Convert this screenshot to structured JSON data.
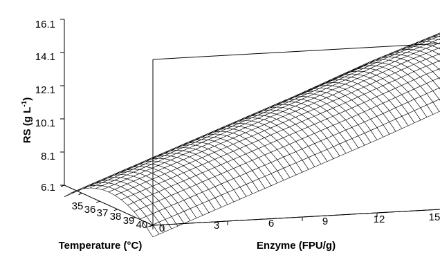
{
  "chart_data": {
    "type": "surface",
    "zlabel": "RS (g L",
    "zlabel_sup": "-1",
    "zlabel_close": ")",
    "xlabel": "Enzyme (FPU/g)",
    "ylabel": "Temperature (°C)",
    "x_ticks": [
      "0",
      "3",
      "6",
      "9",
      "12",
      "15"
    ],
    "y_ticks": [
      "35",
      "36",
      "37",
      "38",
      "39",
      "40"
    ],
    "z_ticks": [
      "6.1",
      "8.1",
      "10.1",
      "12.1",
      "14.1",
      "16.1"
    ],
    "xlim": [
      0,
      15
    ],
    "ylim": [
      35,
      40
    ],
    "zlim": [
      6.1,
      16.1
    ],
    "surface": {
      "enzyme_fpu_g": [
        0,
        3,
        6,
        9,
        12,
        15
      ],
      "rs_at_temperature_peak_g_L": [
        6.9,
        8.6,
        10.3,
        12.0,
        13.8,
        15.4
      ],
      "rs_drop_at_temperature_edges_g_L": 1.5,
      "temperature_peak_c": 37.5
    }
  }
}
